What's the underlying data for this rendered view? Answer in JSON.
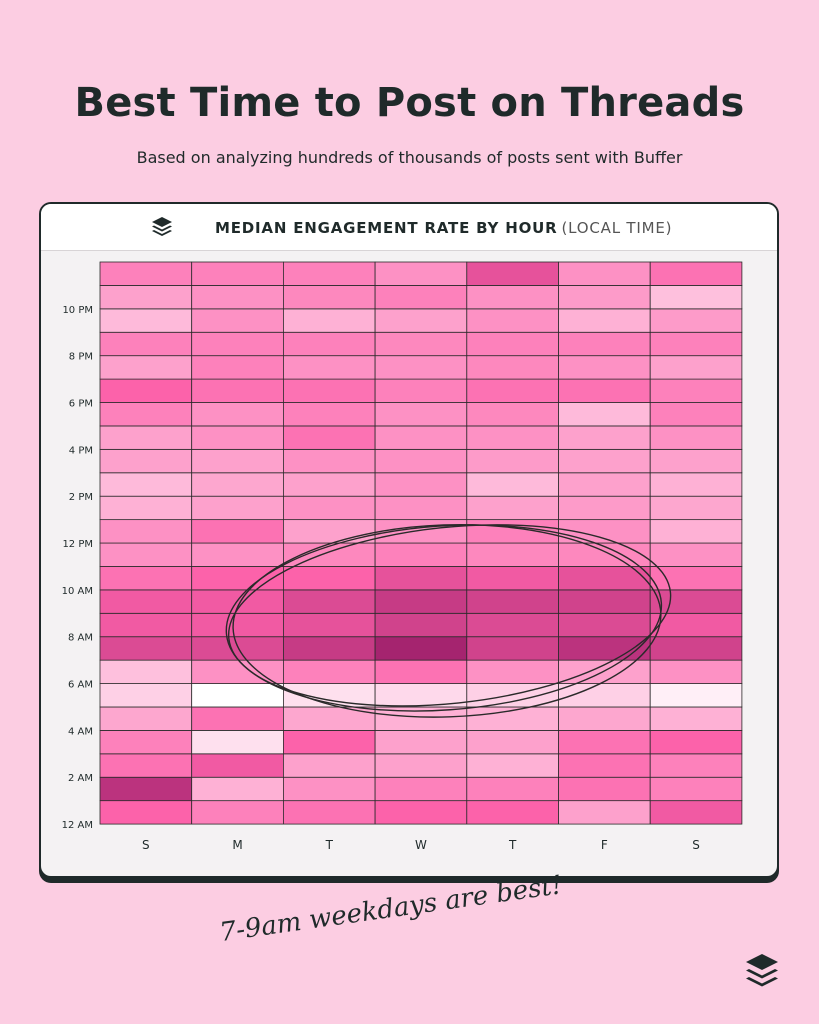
{
  "title": "Best Time to Post on Threads",
  "subtitle": "Based on analyzing hundreds of thousands of posts sent with Buffer",
  "card_title_main": "MEDIAN ENGAGEMENT RATE BY HOUR",
  "card_title_sub": "(LOCAL TIME)",
  "footnote": "7-9am weekdays are best!",
  "logo_icon": "buffer-layers-icon",
  "colors": {
    "background": "#fccde2",
    "text": "#1f2a2a",
    "scale_low": "#ffffff",
    "scale_high": "#8f1460"
  },
  "chart_data": {
    "type": "heatmap",
    "title": "MEDIAN ENGAGEMENT RATE BY HOUR (LOCAL TIME)",
    "x_categories": [
      "S",
      "M",
      "T",
      "W",
      "T",
      "F",
      "S"
    ],
    "y_hours": [
      "12 AM",
      "1 AM",
      "2 AM",
      "3 AM",
      "4 AM",
      "5 AM",
      "6 AM",
      "7 AM",
      "8 AM",
      "9 AM",
      "10 AM",
      "11 AM",
      "12 PM",
      "1 PM",
      "2 PM",
      "3 PM",
      "4 PM",
      "5 PM",
      "6 PM",
      "7 PM",
      "8 PM",
      "9 PM",
      "10 PM",
      "11 PM"
    ],
    "y_tick_labels": [
      "12 AM",
      "2 AM",
      "4 AM",
      "6 AM",
      "8 AM",
      "10 AM",
      "12 PM",
      "2 PM",
      "4 PM",
      "6 PM",
      "8 PM",
      "10 PM"
    ],
    "value_scale": "relative intensity 0-1 (darker = higher engagement)",
    "values": [
      [
        0.5,
        0.4,
        0.45,
        0.5,
        0.5,
        0.3,
        0.55
      ],
      [
        0.8,
        0.25,
        0.35,
        0.4,
        0.4,
        0.45,
        0.4
      ],
      [
        0.45,
        0.55,
        0.3,
        0.3,
        0.25,
        0.45,
        0.4
      ],
      [
        0.4,
        0.1,
        0.5,
        0.3,
        0.3,
        0.45,
        0.5
      ],
      [
        0.28,
        0.45,
        0.28,
        0.25,
        0.25,
        0.28,
        0.25
      ],
      [
        0.15,
        0.0,
        0.1,
        0.12,
        0.15,
        0.15,
        0.05
      ],
      [
        0.2,
        0.35,
        0.4,
        0.45,
        0.35,
        0.3,
        0.35
      ],
      [
        0.65,
        0.65,
        0.75,
        0.9,
        0.7,
        0.8,
        0.7
      ],
      [
        0.55,
        0.55,
        0.6,
        0.7,
        0.65,
        0.65,
        0.55
      ],
      [
        0.55,
        0.55,
        0.65,
        0.75,
        0.7,
        0.7,
        0.65
      ],
      [
        0.45,
        0.5,
        0.5,
        0.6,
        0.55,
        0.6,
        0.45
      ],
      [
        0.35,
        0.35,
        0.38,
        0.4,
        0.38,
        0.38,
        0.35
      ],
      [
        0.35,
        0.45,
        0.3,
        0.35,
        0.4,
        0.35,
        0.25
      ],
      [
        0.25,
        0.3,
        0.35,
        0.35,
        0.3,
        0.32,
        0.28
      ],
      [
        0.22,
        0.28,
        0.3,
        0.35,
        0.22,
        0.3,
        0.25
      ],
      [
        0.3,
        0.3,
        0.35,
        0.35,
        0.32,
        0.3,
        0.3
      ],
      [
        0.3,
        0.35,
        0.45,
        0.35,
        0.35,
        0.3,
        0.35
      ],
      [
        0.4,
        0.35,
        0.4,
        0.35,
        0.38,
        0.22,
        0.4
      ],
      [
        0.5,
        0.45,
        0.45,
        0.4,
        0.45,
        0.45,
        0.4
      ],
      [
        0.3,
        0.4,
        0.35,
        0.35,
        0.38,
        0.35,
        0.3
      ],
      [
        0.4,
        0.4,
        0.4,
        0.38,
        0.4,
        0.4,
        0.4
      ],
      [
        0.22,
        0.35,
        0.25,
        0.3,
        0.35,
        0.25,
        0.32
      ],
      [
        0.3,
        0.35,
        0.38,
        0.4,
        0.35,
        0.32,
        0.2
      ],
      [
        0.4,
        0.4,
        0.4,
        0.35,
        0.6,
        0.35,
        0.45
      ]
    ],
    "annotation": "7-9am weekdays are best!",
    "grid": true
  }
}
